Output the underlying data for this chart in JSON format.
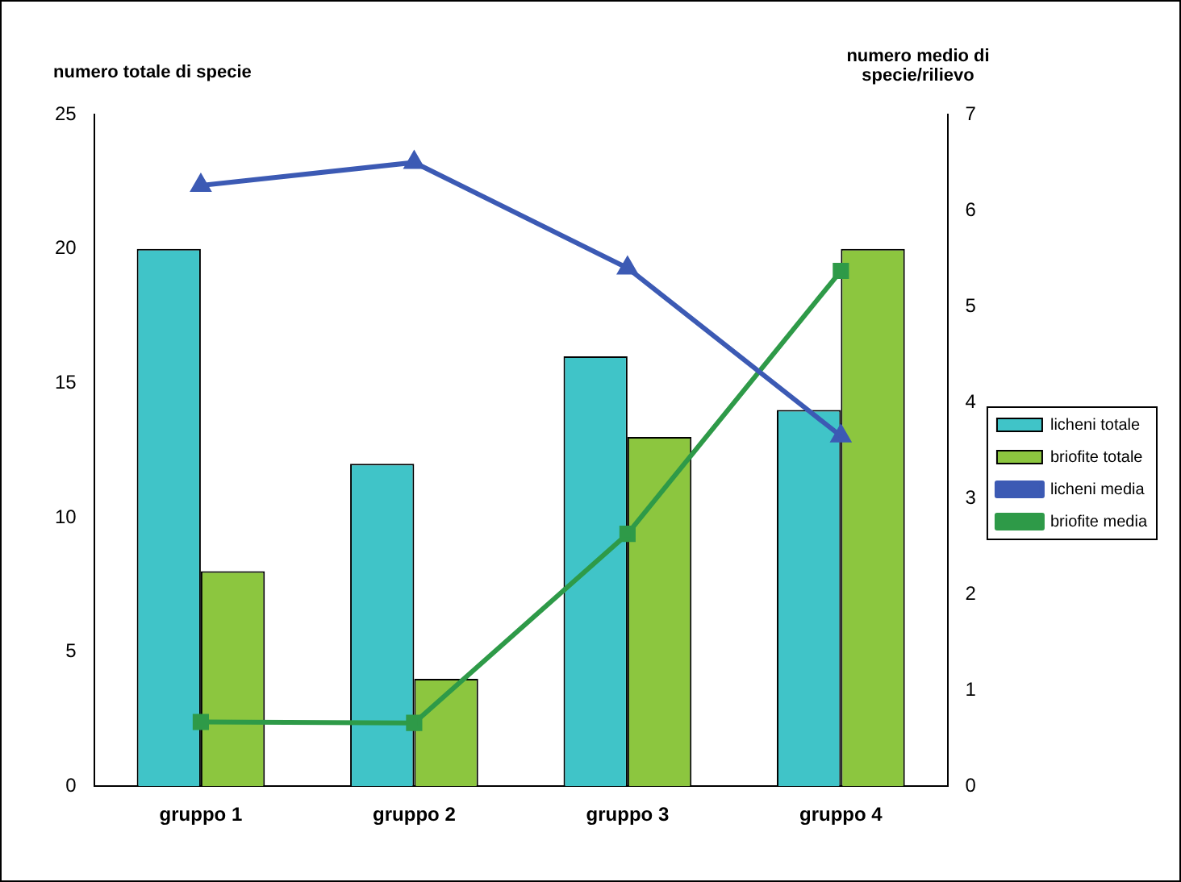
{
  "chart_data": {
    "type": "bar",
    "ylabel": "numero totale di specie",
    "y2label": "numero medio di specie/rilievo",
    "categories": [
      "gruppo 1",
      "gruppo 2",
      "gruppo 3",
      "gruppo 4"
    ],
    "series": [
      {
        "name": "licheni totale",
        "color": "#40c4c8",
        "values": [
          20,
          12,
          16,
          14
        ]
      },
      {
        "name": "briofite totale",
        "color": "#8cc63f",
        "values": [
          8,
          4,
          13,
          20
        ]
      },
      {
        "name": "licheni media",
        "type": "line",
        "axis": "y2",
        "marker": "triangle",
        "color": "#3c5ab4",
        "values": [
          6.26,
          6.5,
          5.4,
          3.65
        ]
      },
      {
        "name": "briofite media",
        "type": "line",
        "axis": "y2",
        "marker": "square",
        "color": "#2e9a48",
        "values": [
          0.67,
          0.66,
          2.63,
          5.37
        ]
      }
    ],
    "ylim": [
      0,
      25
    ],
    "yticks": [
      0,
      5,
      10,
      15,
      20,
      25
    ],
    "y2lim": [
      0,
      7
    ],
    "y2ticks": [
      0,
      1,
      2,
      3,
      4,
      5,
      6,
      7
    ],
    "grid": false,
    "legend": "right"
  }
}
